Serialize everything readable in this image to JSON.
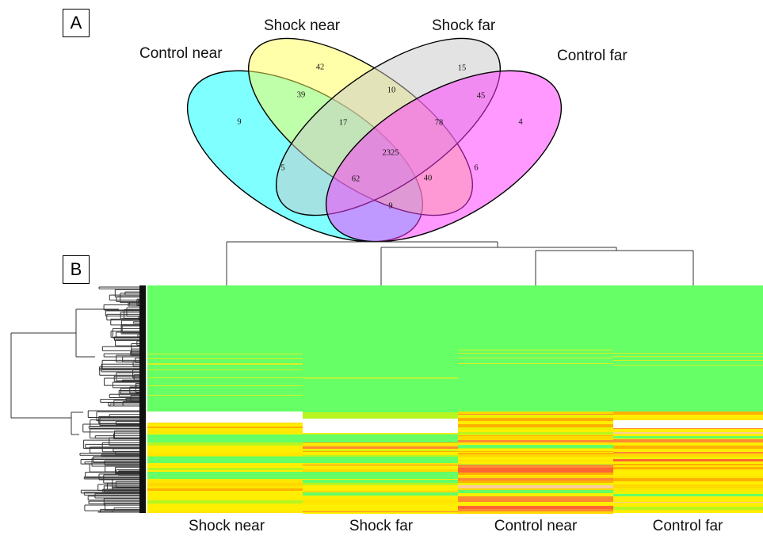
{
  "panels": {
    "a": "A",
    "b": "B"
  },
  "venn": {
    "sets": [
      {
        "name": "Control near",
        "color": "#00ffff"
      },
      {
        "name": "Shock near",
        "color": "#ffff55"
      },
      {
        "name": "Shock far",
        "color": "#c8c8c8"
      },
      {
        "name": "Control far",
        "color": "#ff33ff"
      }
    ],
    "regions": [
      {
        "sets": [
          "Control near"
        ],
        "count": "9"
      },
      {
        "sets": [
          "Shock near"
        ],
        "count": "42"
      },
      {
        "sets": [
          "Shock far"
        ],
        "count": "15"
      },
      {
        "sets": [
          "Control far"
        ],
        "count": "4"
      },
      {
        "sets": [
          "Shock near",
          "Shock far"
        ],
        "count": "10"
      },
      {
        "sets": [
          "Control near",
          "Shock near"
        ],
        "count": "39"
      },
      {
        "sets": [
          "Shock far",
          "Control far"
        ],
        "count": "45"
      },
      {
        "sets": [
          "Control near",
          "Shock near",
          "Shock far"
        ],
        "count": "17"
      },
      {
        "sets": [
          "Shock near",
          "Shock far",
          "Control far"
        ],
        "count": "78"
      },
      {
        "sets": [
          "Control near",
          "Shock near",
          "Shock far",
          "Control far"
        ],
        "count": "2325"
      },
      {
        "sets": [
          "Control near",
          "Shock far"
        ],
        "count": "5"
      },
      {
        "sets": [
          "Shock near",
          "Control far"
        ],
        "count": "6"
      },
      {
        "sets": [
          "Control near",
          "Shock far",
          "Control far"
        ],
        "count": "62"
      },
      {
        "sets": [
          "Control near",
          "Shock near",
          "Control far"
        ],
        "count": "40"
      },
      {
        "sets": [
          "Control near",
          "Control far"
        ],
        "count": "9"
      }
    ]
  },
  "heatmap": {
    "columns": [
      "Shock near",
      "Shock far",
      "Control near",
      "Control far"
    ],
    "colors": {
      "low": "#66ff66",
      "high_pale": "#ffffff",
      "mid": "#ffee00",
      "high": "#ff6633"
    }
  }
}
